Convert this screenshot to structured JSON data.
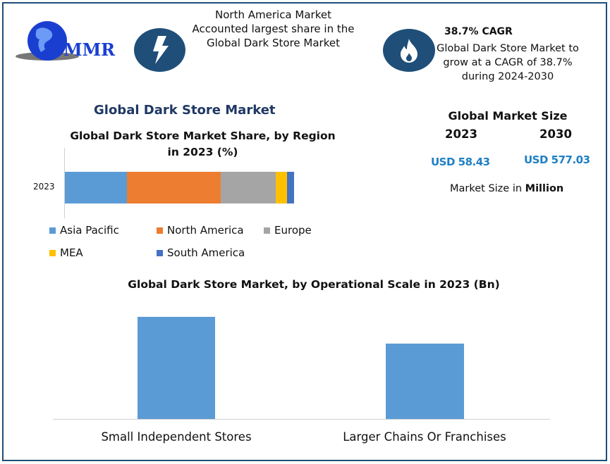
{
  "logo": {
    "text": "MMR"
  },
  "highlight1": {
    "icon": "lightning-icon",
    "lines": [
      "North America Market",
      "Accounted largest share in the",
      "Global Dark Store Market"
    ]
  },
  "highlight2": {
    "icon": "flame-icon",
    "title": "38.7% CAGR",
    "lines": [
      "Global Dark Store Market to",
      "grow at a CAGR of 38.7%",
      "during 2024-2030"
    ]
  },
  "main_title": "Global Dark Store Market",
  "market_size": {
    "title": "Global Market Size",
    "year1": "2023",
    "year2": "2030",
    "value1": "USD 58.43",
    "value2": "USD 577.03",
    "note_prefix": "Market Size in ",
    "note_bold": "Million"
  },
  "chart_data": [
    {
      "type": "bar",
      "orientation": "horizontal",
      "stacked": true,
      "title_line1": "Global Dark Store Market Share, by Region",
      "title_line2": "in 2023 (%)",
      "categories": [
        "2023"
      ],
      "series": [
        {
          "name": "Asia Pacific",
          "values": [
            27
          ],
          "color": "#5b9bd5"
        },
        {
          "name": "North America",
          "values": [
            41
          ],
          "color": "#ed7d31"
        },
        {
          "name": "Europe",
          "values": [
            24
          ],
          "color": "#a5a5a5"
        },
        {
          "name": "MEA",
          "values": [
            5
          ],
          "color": "#ffc000"
        },
        {
          "name": "South America",
          "values": [
            3
          ],
          "color": "#4472c4"
        }
      ],
      "legend": "bottom"
    },
    {
      "type": "bar",
      "title": "Global Dark Store Market, by Operational Scale in 2023 (Bn)",
      "categories": [
        "Small Independent Stores",
        "Larger Chains Or Franchises"
      ],
      "values": [
        100,
        74
      ],
      "color": "#5b9bd5",
      "ylim": [
        0,
        100
      ]
    }
  ]
}
